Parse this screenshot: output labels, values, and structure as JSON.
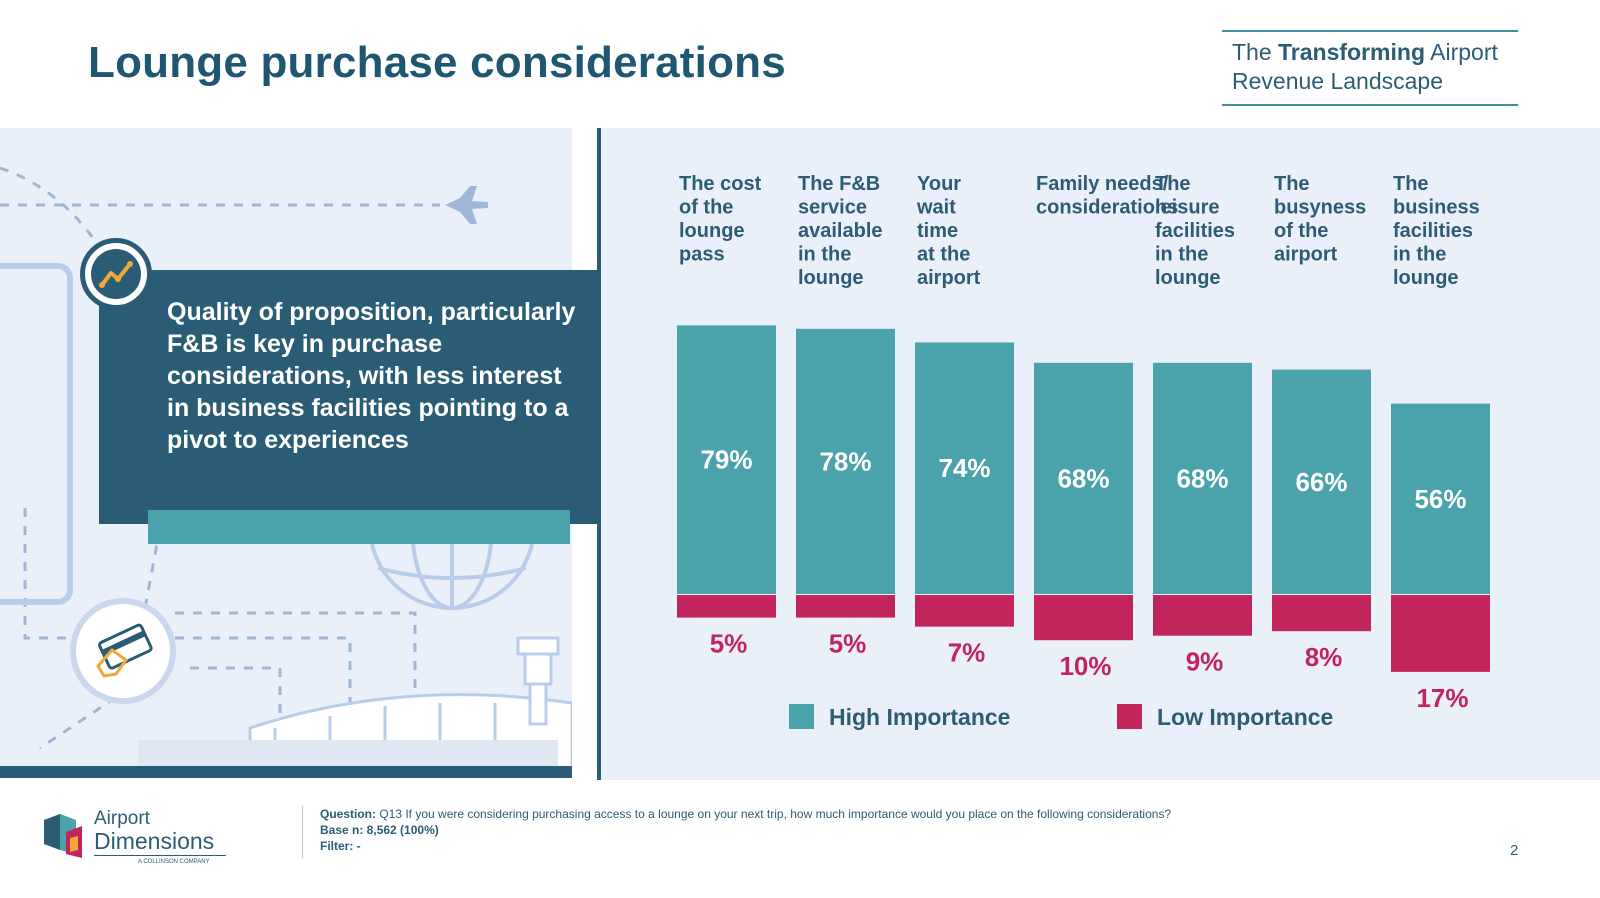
{
  "slide": {
    "title": "Lounge purchase considerations",
    "badge_pre": "The ",
    "badge_bold": "Transforming",
    "badge_post": " Airport",
    "badge_line2": "Revenue Landscape",
    "insight": "Quality of proposition, particularly F&B is key in purchase considerations, with less interest in business facilities pointing to a pivot to experiences",
    "page_number": "2"
  },
  "footer": {
    "question_label": "Question:",
    "question_text": " Q13 If you were considering purchasing access to a lounge on your next trip, how much importance would you place on the following considerations?",
    "base_label": "Base n: 8,562 (100%)",
    "filter_label": "Filter: -"
  },
  "logo": {
    "line1": "Airport",
    "line2": "Dimensions",
    "line3": "A COLLINSON COMPANY"
  },
  "colors": {
    "high": "#4aa3aa",
    "low": "#c2255c",
    "navy": "#2a5d75",
    "panel": "#eaf0f9"
  },
  "icons": [
    "trend-chart-icon",
    "airplane-icon",
    "globe-icon",
    "payment-card-icon",
    "airport-terminal-icon",
    "control-tower-icon"
  ],
  "chart_data": {
    "type": "bar",
    "categories": [
      [
        "The cost",
        "of the",
        "lounge",
        "pass"
      ],
      [
        "The F&B",
        "service",
        "available",
        "in the",
        "lounge"
      ],
      [
        "Your",
        "wait",
        "time",
        "at the",
        "airport"
      ],
      [
        "Family needs/",
        "considerations"
      ],
      [
        "The",
        "leisure",
        "facilities",
        "in the",
        "lounge"
      ],
      [
        "The",
        "busyness",
        "of the",
        "airport"
      ],
      [
        "The",
        "business",
        "facilities",
        "in the",
        "lounge"
      ]
    ],
    "series": [
      {
        "name": "High Importance",
        "values": [
          79,
          78,
          74,
          68,
          68,
          66,
          56
        ],
        "labels": [
          "79%",
          "78%",
          "74%",
          "68%",
          "68%",
          "66%",
          "56%"
        ]
      },
      {
        "name": "Low Importance",
        "values": [
          5,
          5,
          7,
          10,
          9,
          8,
          17
        ],
        "labels": [
          "5%",
          "5%",
          "7%",
          "10%",
          "9%",
          "8%",
          "17%"
        ]
      }
    ],
    "ylim": [
      0,
      100
    ],
    "legend_position": "bottom",
    "grid": false
  }
}
